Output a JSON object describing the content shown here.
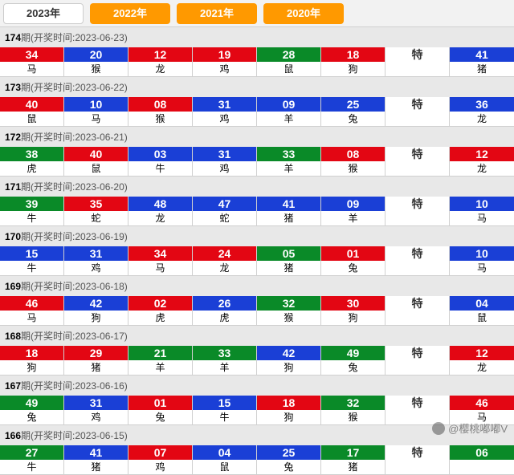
{
  "tabs": [
    {
      "label": "2023年",
      "active": true
    },
    {
      "label": "2022年",
      "active": false
    },
    {
      "label": "2021年",
      "active": false
    },
    {
      "label": "2020年",
      "active": false
    }
  ],
  "colors": {
    "red": "#e30613",
    "blue": "#1a3fd6",
    "green": "#0a8a28",
    "tab": "#ff9900"
  },
  "special_label": "特",
  "watermark": "@樱桃嘟嘟V",
  "periods": [
    {
      "issue": "174",
      "date": "2023-06-23",
      "balls": [
        {
          "n": "34",
          "z": "马",
          "c": "red"
        },
        {
          "n": "20",
          "z": "猴",
          "c": "blue"
        },
        {
          "n": "12",
          "z": "龙",
          "c": "red"
        },
        {
          "n": "19",
          "z": "鸡",
          "c": "red"
        },
        {
          "n": "28",
          "z": "鼠",
          "c": "green"
        },
        {
          "n": "18",
          "z": "狗",
          "c": "red"
        }
      ],
      "special": {
        "n": "41",
        "z": "猪",
        "c": "blue"
      }
    },
    {
      "issue": "173",
      "date": "2023-06-22",
      "balls": [
        {
          "n": "40",
          "z": "鼠",
          "c": "red"
        },
        {
          "n": "10",
          "z": "马",
          "c": "blue"
        },
        {
          "n": "08",
          "z": "猴",
          "c": "red"
        },
        {
          "n": "31",
          "z": "鸡",
          "c": "blue"
        },
        {
          "n": "09",
          "z": "羊",
          "c": "blue"
        },
        {
          "n": "25",
          "z": "兔",
          "c": "blue"
        }
      ],
      "special": {
        "n": "36",
        "z": "龙",
        "c": "blue"
      }
    },
    {
      "issue": "172",
      "date": "2023-06-21",
      "balls": [
        {
          "n": "38",
          "z": "虎",
          "c": "green"
        },
        {
          "n": "40",
          "z": "鼠",
          "c": "red"
        },
        {
          "n": "03",
          "z": "牛",
          "c": "blue"
        },
        {
          "n": "31",
          "z": "鸡",
          "c": "blue"
        },
        {
          "n": "33",
          "z": "羊",
          "c": "green"
        },
        {
          "n": "08",
          "z": "猴",
          "c": "red"
        }
      ],
      "special": {
        "n": "12",
        "z": "龙",
        "c": "red"
      }
    },
    {
      "issue": "171",
      "date": "2023-06-20",
      "balls": [
        {
          "n": "39",
          "z": "牛",
          "c": "green"
        },
        {
          "n": "35",
          "z": "蛇",
          "c": "red"
        },
        {
          "n": "48",
          "z": "龙",
          "c": "blue"
        },
        {
          "n": "47",
          "z": "蛇",
          "c": "blue"
        },
        {
          "n": "41",
          "z": "猪",
          "c": "blue"
        },
        {
          "n": "09",
          "z": "羊",
          "c": "blue"
        }
      ],
      "special": {
        "n": "10",
        "z": "马",
        "c": "blue"
      }
    },
    {
      "issue": "170",
      "date": "2023-06-19",
      "balls": [
        {
          "n": "15",
          "z": "牛",
          "c": "blue"
        },
        {
          "n": "31",
          "z": "鸡",
          "c": "blue"
        },
        {
          "n": "34",
          "z": "马",
          "c": "red"
        },
        {
          "n": "24",
          "z": "龙",
          "c": "red"
        },
        {
          "n": "05",
          "z": "猪",
          "c": "green"
        },
        {
          "n": "01",
          "z": "兔",
          "c": "red"
        }
      ],
      "special": {
        "n": "10",
        "z": "马",
        "c": "blue"
      }
    },
    {
      "issue": "169",
      "date": "2023-06-18",
      "balls": [
        {
          "n": "46",
          "z": "马",
          "c": "red"
        },
        {
          "n": "42",
          "z": "狗",
          "c": "blue"
        },
        {
          "n": "02",
          "z": "虎",
          "c": "red"
        },
        {
          "n": "26",
          "z": "虎",
          "c": "blue"
        },
        {
          "n": "32",
          "z": "猴",
          "c": "green"
        },
        {
          "n": "30",
          "z": "狗",
          "c": "red"
        }
      ],
      "special": {
        "n": "04",
        "z": "鼠",
        "c": "blue"
      }
    },
    {
      "issue": "168",
      "date": "2023-06-17",
      "balls": [
        {
          "n": "18",
          "z": "狗",
          "c": "red"
        },
        {
          "n": "29",
          "z": "猪",
          "c": "red"
        },
        {
          "n": "21",
          "z": "羊",
          "c": "green"
        },
        {
          "n": "33",
          "z": "羊",
          "c": "green"
        },
        {
          "n": "42",
          "z": "狗",
          "c": "blue"
        },
        {
          "n": "49",
          "z": "兔",
          "c": "green"
        }
      ],
      "special": {
        "n": "12",
        "z": "龙",
        "c": "red"
      }
    },
    {
      "issue": "167",
      "date": "2023-06-16",
      "balls": [
        {
          "n": "49",
          "z": "兔",
          "c": "green"
        },
        {
          "n": "31",
          "z": "鸡",
          "c": "blue"
        },
        {
          "n": "01",
          "z": "兔",
          "c": "red"
        },
        {
          "n": "15",
          "z": "牛",
          "c": "blue"
        },
        {
          "n": "18",
          "z": "狗",
          "c": "red"
        },
        {
          "n": "32",
          "z": "猴",
          "c": "green"
        }
      ],
      "special": {
        "n": "46",
        "z": "马",
        "c": "red"
      }
    },
    {
      "issue": "166",
      "date": "2023-06-15",
      "balls": [
        {
          "n": "27",
          "z": "牛",
          "c": "green"
        },
        {
          "n": "41",
          "z": "猪",
          "c": "blue"
        },
        {
          "n": "07",
          "z": "鸡",
          "c": "red"
        },
        {
          "n": "04",
          "z": "鼠",
          "c": "blue"
        },
        {
          "n": "25",
          "z": "兔",
          "c": "blue"
        },
        {
          "n": "17",
          "z": "猪",
          "c": "green"
        }
      ],
      "special": {
        "n": "06",
        "z": "",
        "c": "green"
      }
    }
  ]
}
